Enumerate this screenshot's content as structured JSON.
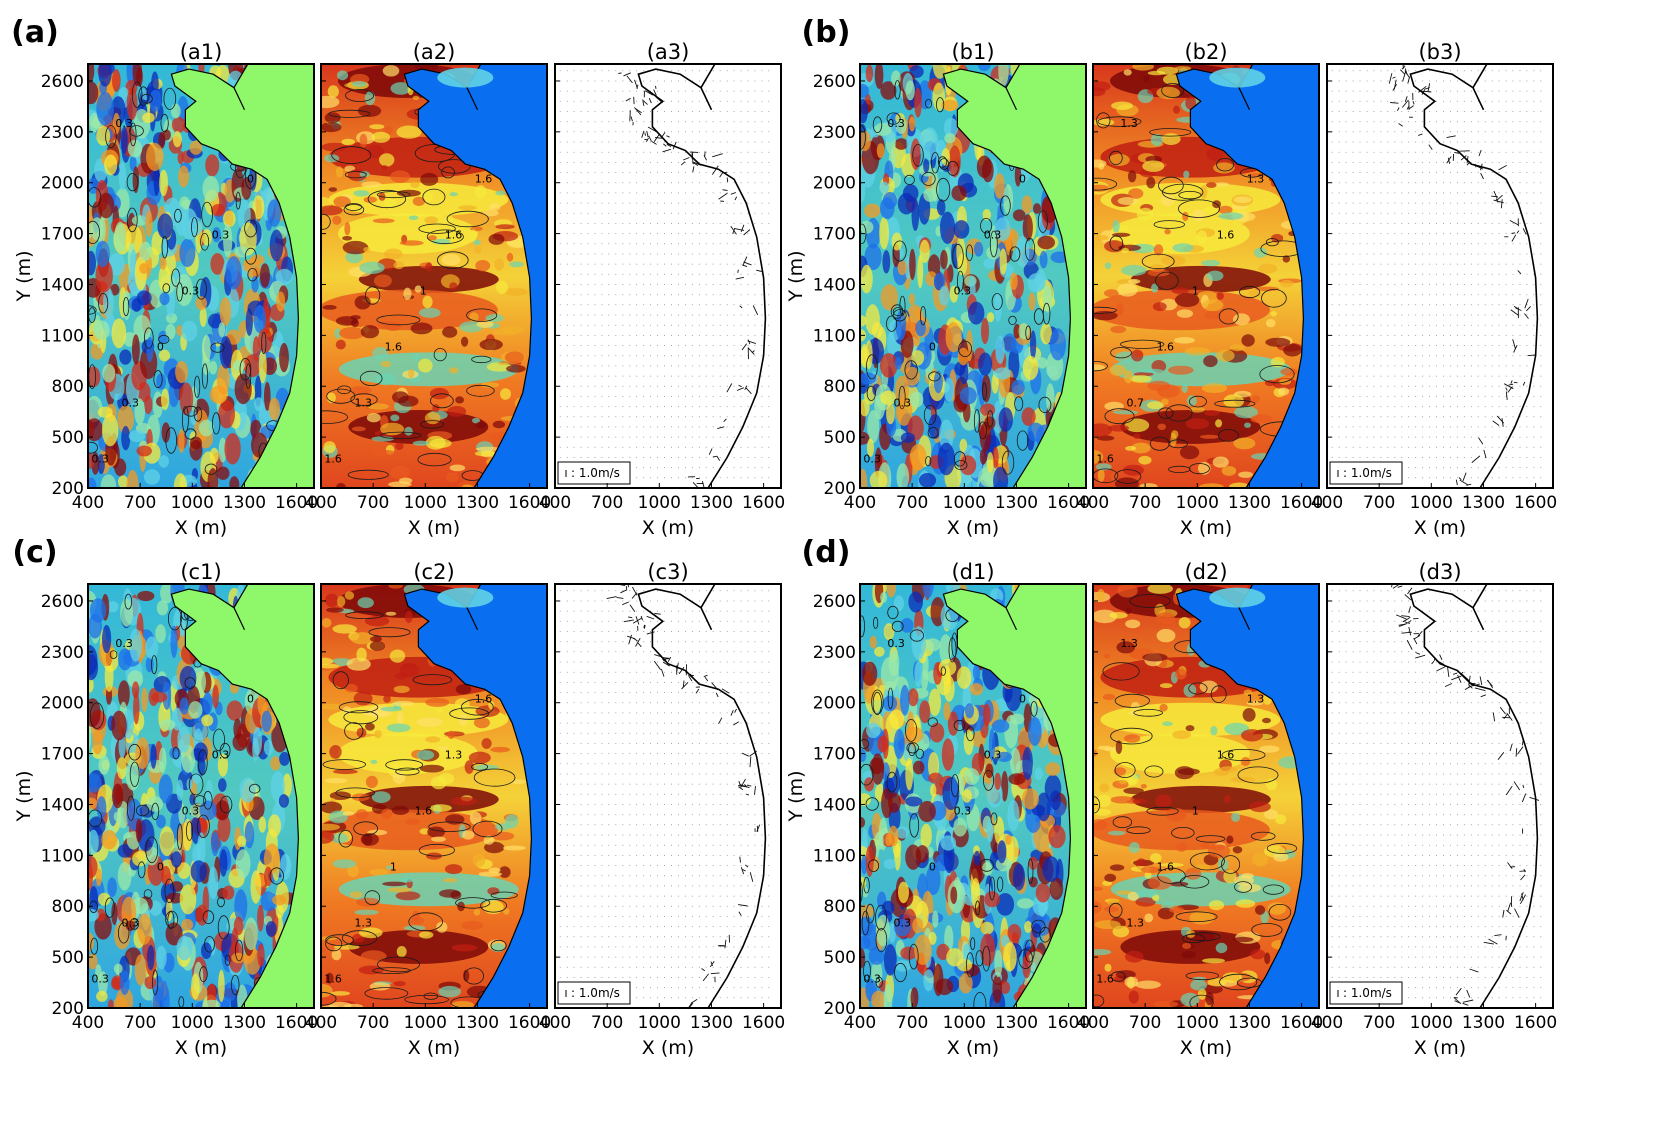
{
  "chart_data": {
    "type": "heatmap",
    "x_axis_label": "X (m)",
    "y_axis_label": "Y (m)",
    "x_range": [
      400,
      1700
    ],
    "y_range": [
      200,
      2700
    ],
    "x_ticks": [
      "400",
      "700",
      "1000",
      "1300",
      "1600"
    ],
    "y_ticks": [
      "200",
      "500",
      "800",
      "1100",
      "1400",
      "1700",
      "2000",
      "2300",
      "2600"
    ],
    "land_color_panel1": "#8ef86a",
    "sea_color_panel2": "#0a6ef0",
    "scale_label": "1.0m/s",
    "groups": [
      {
        "label": "(a)",
        "panels": [
          {
            "title": "(a1)",
            "kind": "wave-field",
            "contour_labels": [
              "0.3",
              "0.3",
              "0",
              "0.3",
              "0.3",
              "0",
              "0.3"
            ]
          },
          {
            "title": "(a2)",
            "kind": "height-field",
            "contour_labels": [
              "1.6",
              "1.3",
              "1.6",
              "1",
              "1.6",
              "1.6"
            ]
          },
          {
            "title": "(a3)",
            "kind": "vector-field",
            "scale_label": "1.0m/s"
          }
        ]
      },
      {
        "label": "(b)",
        "panels": [
          {
            "title": "(b1)",
            "kind": "wave-field",
            "contour_labels": [
              "0.3",
              "0.3",
              "0",
              "0.3",
              "0.3",
              "0",
              "0.3"
            ]
          },
          {
            "title": "(b2)",
            "kind": "height-field",
            "contour_labels": [
              "1.6",
              "0.7",
              "1.6",
              "1",
              "1.6",
              "1.3",
              "1.3"
            ]
          },
          {
            "title": "(b3)",
            "kind": "vector-field",
            "scale_label": "1.0m/s"
          }
        ]
      },
      {
        "label": "(c)",
        "panels": [
          {
            "title": "(c1)",
            "kind": "wave-field",
            "contour_labels": [
              "0.3",
              "0.3",
              "0",
              "0.3",
              "0.3",
              "0",
              "0.3"
            ]
          },
          {
            "title": "(c2)",
            "kind": "height-field",
            "contour_labels": [
              "1.6",
              "1.3",
              "1",
              "1.6",
              "1.3",
              "1.6"
            ]
          },
          {
            "title": "(c3)",
            "kind": "vector-field",
            "scale_label": "1.0m/s"
          }
        ]
      },
      {
        "label": "(d)",
        "panels": [
          {
            "title": "(d1)",
            "kind": "wave-field",
            "contour_labels": [
              "0.3",
              "0.3",
              "0",
              "0.3",
              "0.3",
              "0",
              "0.3"
            ]
          },
          {
            "title": "(d2)",
            "kind": "height-field",
            "contour_labels": [
              "1.6",
              "1.3",
              "1.6",
              "1",
              "1.6",
              "1.3",
              "1.3"
            ]
          },
          {
            "title": "(d3)",
            "kind": "vector-field",
            "scale_label": "1.0m/s"
          }
        ]
      }
    ]
  }
}
